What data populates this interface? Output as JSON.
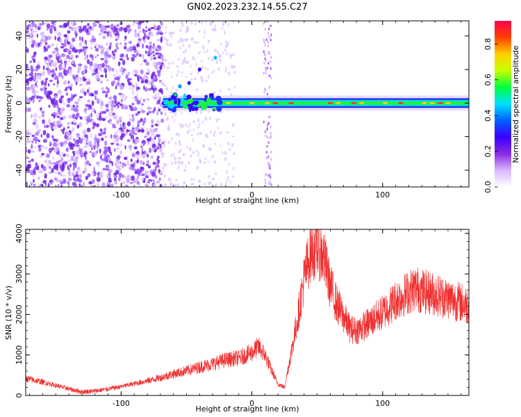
{
  "figure": {
    "title": "GN02.2023.232.14.55.C27"
  },
  "chart_data": [
    {
      "type": "heatmap",
      "xlabel": "Height of straight line (km)",
      "ylabel": "Frequency (Hz)",
      "xlim": [
        -173,
        166
      ],
      "ylim": [
        -50,
        49
      ],
      "x_ticks": [
        -100,
        0,
        100
      ],
      "y_ticks": [
        -40,
        -20,
        0,
        20,
        40
      ],
      "colorbar": {
        "label": "Normalized spectral amplitude",
        "range": [
          0,
          0.93
        ],
        "ticks": [
          "0.0",
          "0.2",
          "0.4",
          "0.6",
          "0.8"
        ],
        "colors": [
          "#ffffff",
          "#d9b8ff",
          "#8a2be2",
          "#3a00ff",
          "#0060ff",
          "#00e0ff",
          "#00ff40",
          "#c8ff00",
          "#ffd000",
          "#ff4000",
          "#ff0050"
        ]
      },
      "features": {
        "noise_region_x": [
          -173,
          -68
        ],
        "vertical_stripe_x": 12,
        "signal_band_center_freq": 0,
        "signal_band_x": [
          -68,
          166
        ]
      }
    },
    {
      "type": "line",
      "xlabel": "Height of straight line (km)",
      "ylabel": "SNR (10 * v/v)",
      "xlim": [
        -173,
        166
      ],
      "ylim": [
        0,
        4100
      ],
      "x_ticks": [
        -100,
        0,
        100
      ],
      "y_ticks": [
        0,
        1000,
        2000,
        3000,
        4000
      ],
      "color": "#f03030",
      "x": [
        -173,
        -160,
        -150,
        -140,
        -130,
        -120,
        -110,
        -100,
        -90,
        -80,
        -70,
        -60,
        -50,
        -40,
        -30,
        -20,
        -10,
        0,
        5,
        10,
        15,
        20,
        25,
        30,
        35,
        40,
        45,
        50,
        55,
        60,
        65,
        70,
        75,
        80,
        90,
        100,
        110,
        120,
        125,
        130,
        140,
        150,
        160,
        166
      ],
      "values": [
        420,
        330,
        250,
        160,
        90,
        110,
        160,
        220,
        290,
        360,
        440,
        530,
        610,
        700,
        780,
        880,
        920,
        1060,
        1200,
        1000,
        620,
        280,
        200,
        1050,
        1900,
        2900,
        3550,
        3700,
        3400,
        2700,
        2250,
        1950,
        1650,
        1600,
        1800,
        2050,
        2350,
        2550,
        2650,
        2580,
        2500,
        2400,
        2300,
        2200
      ]
    }
  ]
}
